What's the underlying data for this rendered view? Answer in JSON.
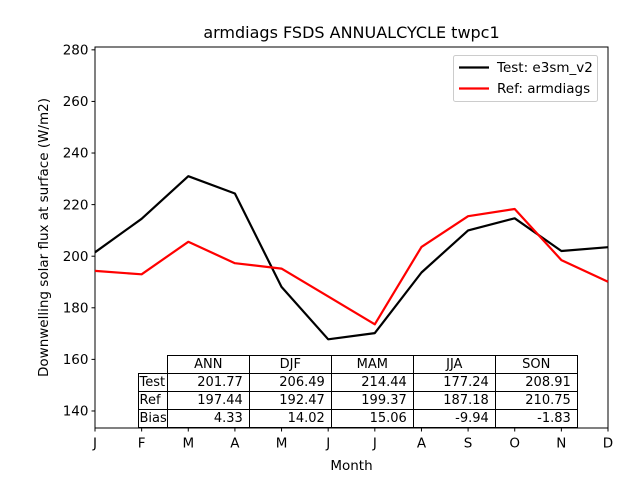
{
  "figure": {
    "background": "#ffffff",
    "text_color": "#000000",
    "legend_border_color": "#cccccc"
  },
  "chart_data": {
    "type": "line",
    "title": "armdiags FSDS ANNUALCYCLE twpc1",
    "xlabel": "Month",
    "ylabel": "Downwelling solar flux at surface (W/m2)",
    "x_ticklabels": [
      "J",
      "F",
      "M",
      "A",
      "M",
      "J",
      "J",
      "A",
      "S",
      "O",
      "N",
      "D"
    ],
    "y_ticks": [
      140,
      160,
      180,
      200,
      220,
      240,
      260,
      280
    ],
    "ylim": [
      133.4,
      281.1
    ],
    "grid": false,
    "legend_position": "upper right",
    "series": [
      {
        "name": "Test: e3sm_v2",
        "color": "#000000",
        "values": [
          201.5,
          214.5,
          231.0,
          224.3,
          188.1,
          167.8,
          170.2,
          193.7,
          210.0,
          214.7,
          202.0,
          203.5
        ]
      },
      {
        "name": "Ref: armdiags",
        "color": "#ff0000",
        "values": [
          194.3,
          193.0,
          205.6,
          197.3,
          195.2,
          184.4,
          173.6,
          203.6,
          215.5,
          218.3,
          198.5,
          190.1
        ]
      }
    ]
  },
  "table": {
    "columns": [
      "ANN",
      "DJF",
      "MAM",
      "JJA",
      "SON"
    ],
    "rows": [
      {
        "label": "Test",
        "values": [
          "201.77",
          "206.49",
          "214.44",
          "177.24",
          "208.91"
        ]
      },
      {
        "label": "Ref",
        "values": [
          "197.44",
          "192.47",
          "199.37",
          "187.18",
          "210.75"
        ]
      },
      {
        "label": "Bias",
        "values": [
          "4.33",
          "14.02",
          "15.06",
          "-9.94",
          "-1.83"
        ]
      }
    ]
  }
}
